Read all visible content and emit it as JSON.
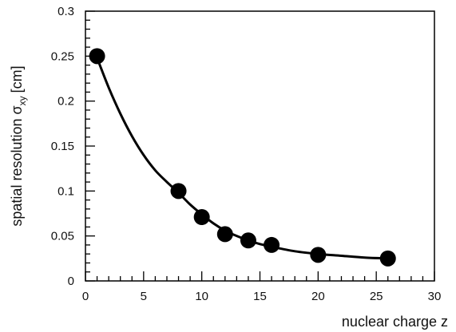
{
  "chart_data": {
    "type": "scatter",
    "title": "",
    "xlabel": "nuclear charge z",
    "ylabel": {
      "main": "spatial resolution σ",
      "subscript": "xy",
      "unit": "[cm]"
    },
    "xlim": [
      0,
      30
    ],
    "ylim": [
      0,
      0.3
    ],
    "x_major_ticks": [
      0,
      5,
      10,
      15,
      20,
      25,
      30
    ],
    "x_tick_labels": [
      "0",
      "5",
      "10",
      "15",
      "20",
      "25",
      "30"
    ],
    "y_major_ticks": [
      0,
      0.05,
      0.1,
      0.15,
      0.2,
      0.25,
      0.3
    ],
    "y_tick_labels": [
      "0",
      "0.05",
      "0.1",
      "0.15",
      "0.2",
      "0.25",
      "0.3"
    ],
    "x_minor_step": 1,
    "y_minor_step": 0.01,
    "grid": false,
    "series": [
      {
        "kind": "points",
        "x": [
          1,
          8,
          10,
          12,
          14,
          16,
          20,
          26
        ],
        "y": [
          0.25,
          0.1,
          0.071,
          0.052,
          0.045,
          0.04,
          0.029,
          0.025
        ],
        "color": "#000000"
      },
      {
        "kind": "fit-curve",
        "x": [
          1,
          2,
          3,
          4,
          5,
          6,
          7,
          8,
          9,
          10,
          11,
          12,
          13,
          14,
          15,
          16,
          18,
          20,
          22,
          24,
          26
        ],
        "y": [
          0.248,
          0.215,
          0.186,
          0.161,
          0.14,
          0.123,
          0.11,
          0.098,
          0.085,
          0.074,
          0.064,
          0.056,
          0.05,
          0.045,
          0.041,
          0.038,
          0.033,
          0.03,
          0.028,
          0.026,
          0.025
        ],
        "color": "#000000"
      }
    ]
  }
}
